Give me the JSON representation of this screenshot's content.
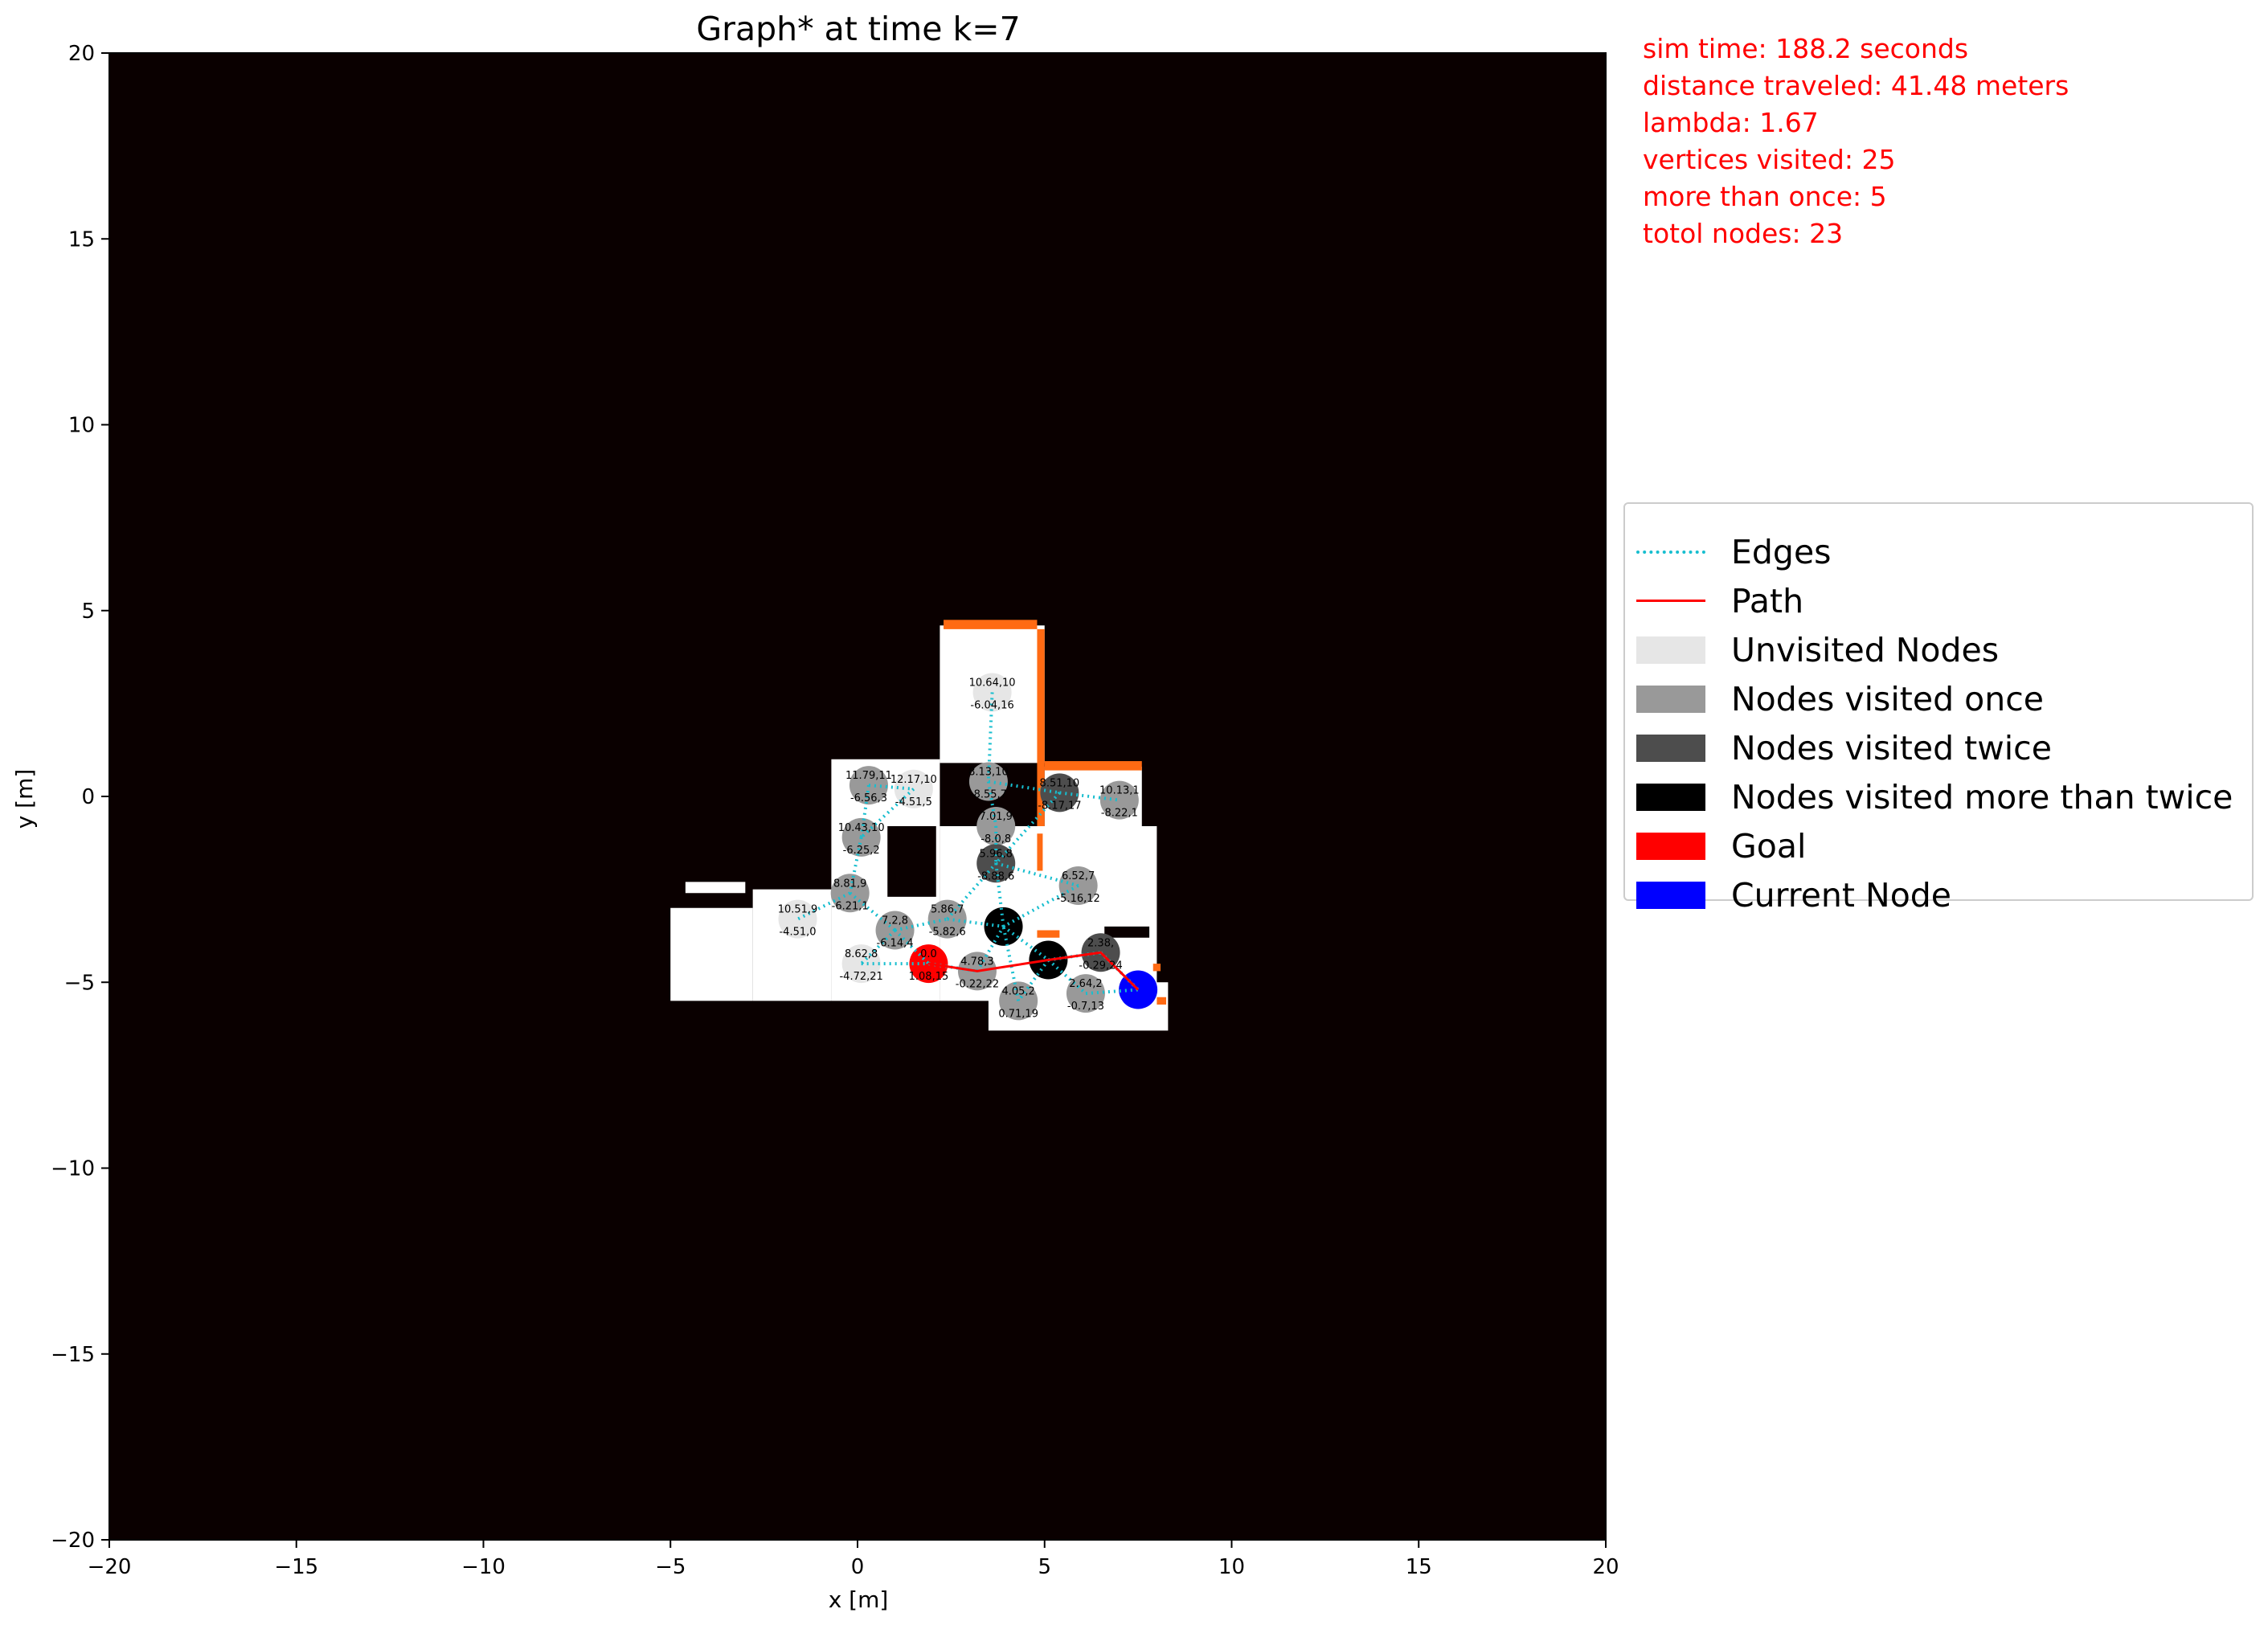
{
  "title": "Graph* at time k=7",
  "info": [
    "sim time: 188.2 seconds",
    "distance traveled: 41.48 meters",
    "lambda: 1.67",
    "vertices visited: 25",
    "more than once: 5",
    "totol nodes: 23"
  ],
  "legend": [
    {
      "label": "Edges",
      "kind": "dotted",
      "color": "#17becf"
    },
    {
      "label": "Path",
      "kind": "line",
      "color": "#ff0000"
    },
    {
      "label": "Unvisited Nodes",
      "kind": "patch",
      "color": "#e6e6e6"
    },
    {
      "label": "Nodes visited once",
      "kind": "patch",
      "color": "#999999"
    },
    {
      "label": "Nodes visited twice",
      "kind": "patch",
      "color": "#4d4d4d"
    },
    {
      "label": "Nodes visited more than twice",
      "kind": "patch",
      "color": "#000000"
    },
    {
      "label": "Goal",
      "kind": "patch",
      "color": "#ff0000"
    },
    {
      "label": "Current Node",
      "kind": "patch",
      "color": "#0000ff"
    }
  ],
  "colors": {
    "background": "#0a0000",
    "free_space": "#ffffff",
    "obstacle": "#ff6a13",
    "edges": "#17becf",
    "path": "#ff0000"
  },
  "chart_data": {
    "type": "scatter",
    "title": "Graph* at time k=7",
    "xlabel": "x [m]",
    "ylabel": "y [m]",
    "xlim": [
      -20,
      20
    ],
    "ylim": [
      -20,
      20
    ],
    "xticks": [
      -20,
      -15,
      -10,
      -5,
      0,
      5,
      10,
      15,
      20
    ],
    "yticks": [
      -20,
      -15,
      -10,
      -5,
      0,
      5,
      10,
      15,
      20
    ],
    "xtick_labels": [
      "−20",
      "−15",
      "−10",
      "−5",
      "0",
      "5",
      "10",
      "15",
      "20"
    ],
    "ytick_labels": [
      "−20",
      "−15",
      "−10",
      "−5",
      "0",
      "5",
      "10",
      "15",
      "20"
    ],
    "free_regions": [
      [
        2.2,
        0.9,
        5.0,
        4.6
      ],
      [
        -0.7,
        -5.5,
        2.2,
        1.0
      ],
      [
        2.2,
        -5.5,
        8.0,
        -0.8
      ],
      [
        5.0,
        -0.8,
        7.6,
        0.8
      ],
      [
        -2.8,
        -5.5,
        -0.7,
        -2.5
      ],
      [
        -5.0,
        -5.5,
        -2.8,
        -3.0
      ],
      [
        -4.6,
        -2.6,
        -3.0,
        -2.3
      ],
      [
        3.5,
        -6.3,
        8.3,
        -5.0
      ]
    ],
    "obstacle_regions": [
      [
        2.3,
        4.5,
        4.8,
        4.75
      ],
      [
        4.8,
        -0.8,
        5.0,
        4.5
      ],
      [
        5.0,
        0.7,
        7.6,
        0.95
      ],
      [
        4.8,
        -2.0,
        4.95,
        -1.0
      ],
      [
        4.8,
        -3.8,
        5.4,
        -3.6
      ],
      [
        7.9,
        -4.7,
        8.1,
        -4.5
      ],
      [
        8.0,
        -5.6,
        8.25,
        -5.4
      ]
    ],
    "black_regions": [
      [
        0.8,
        -2.7,
        2.1,
        -0.8
      ],
      [
        6.6,
        -3.8,
        7.8,
        -3.5
      ]
    ],
    "nodes": [
      {
        "x": 0.3,
        "y": 0.3,
        "status": "once",
        "labels": [
          "11.79,11",
          "-6.56,3"
        ]
      },
      {
        "x": 1.5,
        "y": 0.2,
        "status": "unvisited",
        "labels": [
          "12.17,10",
          "-4.51,5"
        ]
      },
      {
        "x": 0.1,
        "y": -1.1,
        "status": "once",
        "labels": [
          "10.43,10",
          "-6.25,2"
        ]
      },
      {
        "x": 3.6,
        "y": 2.8,
        "status": "unvisited",
        "labels": [
          "10.64,10",
          "-6.04,16"
        ]
      },
      {
        "x": 3.5,
        "y": 0.4,
        "status": "once",
        "labels": [
          "8.13,10",
          "-8.55,7"
        ]
      },
      {
        "x": 5.4,
        "y": 0.1,
        "status": "twice",
        "labels": [
          "8.51,10",
          "-8.17,17"
        ]
      },
      {
        "x": 7.0,
        "y": -0.1,
        "status": "once",
        "labels": [
          "10.13,1",
          "-8.22,1"
        ]
      },
      {
        "x": 3.7,
        "y": -0.8,
        "status": "once",
        "labels": [
          "7.01,9",
          "-8.0,8"
        ]
      },
      {
        "x": 3.7,
        "y": -1.8,
        "status": "twice",
        "labels": [
          "5.96,8",
          "-8.88,6"
        ]
      },
      {
        "x": 5.9,
        "y": -2.4,
        "status": "once",
        "labels": [
          "6.52,7",
          "-5.16,12"
        ]
      },
      {
        "x": -0.2,
        "y": -2.6,
        "status": "once",
        "labels": [
          "8.81,9",
          "-6.21,1"
        ]
      },
      {
        "x": -1.6,
        "y": -3.3,
        "status": "unvisited",
        "labels": [
          "10.51,9",
          "-4.51,0"
        ]
      },
      {
        "x": 2.4,
        "y": -3.3,
        "status": "once",
        "labels": [
          "5.86,7",
          "-5.82,6"
        ]
      },
      {
        "x": 1.0,
        "y": -3.6,
        "status": "once",
        "labels": [
          "7.2,8",
          "-6.14,4"
        ]
      },
      {
        "x": 3.9,
        "y": -3.5,
        "status": "more",
        "labels": [
          "",
          ""
        ]
      },
      {
        "x": 0.1,
        "y": -4.5,
        "status": "unvisited",
        "labels": [
          "8.62,8",
          "-4.72,21"
        ]
      },
      {
        "x": 1.9,
        "y": -4.5,
        "status": "goal",
        "labels": [
          "0.0",
          "1.08,15"
        ]
      },
      {
        "x": 3.2,
        "y": -4.7,
        "status": "once",
        "labels": [
          "4.78,3",
          "-0.22,22"
        ]
      },
      {
        "x": 5.1,
        "y": -4.4,
        "status": "more",
        "labels": [
          "",
          ""
        ]
      },
      {
        "x": 6.5,
        "y": -4.2,
        "status": "twice",
        "labels": [
          "2.38,",
          "-0.29,24"
        ]
      },
      {
        "x": 4.3,
        "y": -5.5,
        "status": "once",
        "labels": [
          "4.05,2",
          "0.71,19"
        ]
      },
      {
        "x": 6.1,
        "y": -5.3,
        "status": "once",
        "labels": [
          "2.64,2",
          "-0.7,13"
        ]
      },
      {
        "x": 7.5,
        "y": -5.2,
        "status": "current",
        "labels": [
          "",
          ""
        ]
      }
    ],
    "edges": [
      [
        0,
        1
      ],
      [
        0,
        2
      ],
      [
        2,
        10
      ],
      [
        10,
        11
      ],
      [
        10,
        13
      ],
      [
        13,
        12
      ],
      [
        13,
        15
      ],
      [
        13,
        16
      ],
      [
        12,
        8
      ],
      [
        12,
        14
      ],
      [
        16,
        17
      ],
      [
        17,
        14
      ],
      [
        3,
        4
      ],
      [
        4,
        5
      ],
      [
        4,
        7
      ],
      [
        5,
        6
      ],
      [
        5,
        8
      ],
      [
        7,
        8
      ],
      [
        8,
        9
      ],
      [
        8,
        14
      ],
      [
        9,
        14
      ],
      [
        14,
        18
      ],
      [
        18,
        19
      ],
      [
        19,
        22
      ],
      [
        18,
        21
      ],
      [
        18,
        20
      ],
      [
        20,
        14
      ],
      [
        21,
        22
      ],
      [
        1,
        2
      ],
      [
        15,
        16
      ]
    ],
    "path": [
      [
        1.9,
        -4.5
      ],
      [
        3.2,
        -4.7
      ],
      [
        5.1,
        -4.4
      ],
      [
        6.5,
        -4.2
      ],
      [
        7.5,
        -5.2
      ]
    ]
  }
}
